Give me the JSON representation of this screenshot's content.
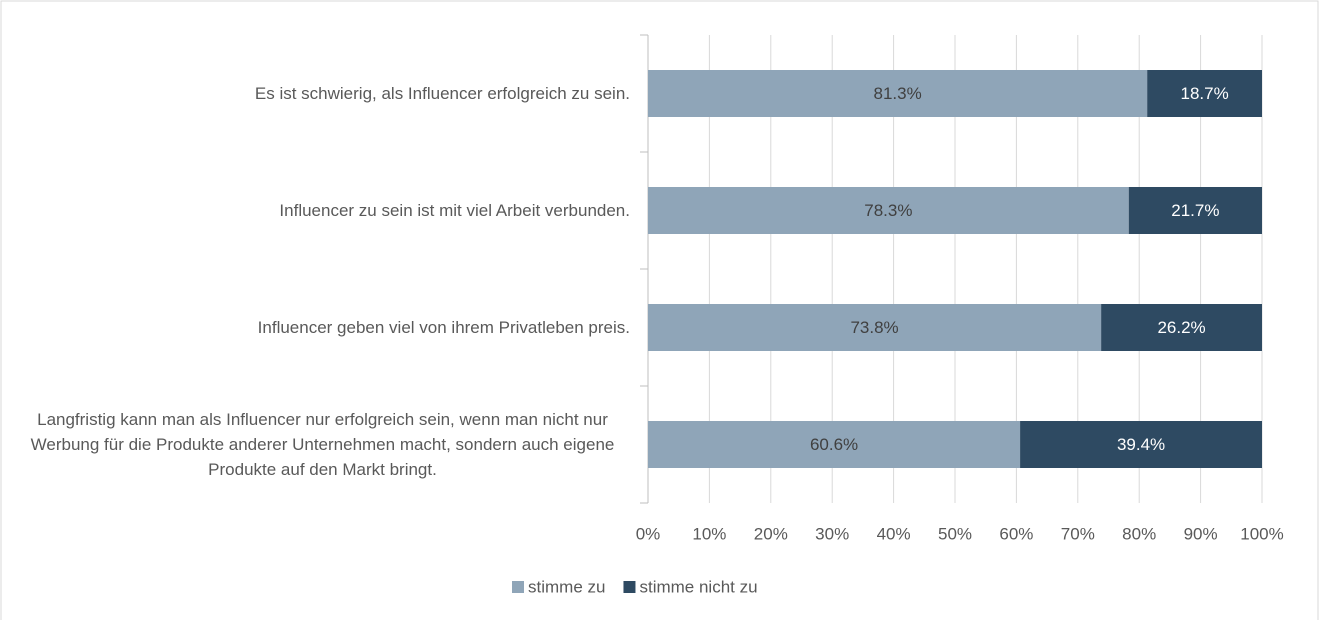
{
  "chart_data": {
    "type": "bar",
    "orientation": "horizontal",
    "stacked": true,
    "categories": [
      "Es ist schwierig, als Influencer erfolgreich zu sein.",
      "Influencer zu sein ist mit viel Arbeit verbunden.",
      "Influencer geben viel von ihrem Privatleben preis.",
      "Langfristig kann man als Influencer nur erfolgreich sein, wenn man nicht nur Werbung für die Produkte anderer Unternehmen macht, sondern auch eigene Produkte auf den Markt bringt."
    ],
    "series": [
      {
        "name": "stimme zu",
        "color": "#8fa5b8",
        "values": [
          81.3,
          78.3,
          73.8,
          60.6
        ],
        "value_labels": [
          "81.3%",
          "78.3%",
          "73.8%",
          "60.6%"
        ]
      },
      {
        "name": "stimme nicht zu",
        "color": "#2e4a62",
        "values": [
          18.7,
          21.7,
          26.2,
          39.4
        ],
        "value_labels": [
          "18.7%",
          "21.7%",
          "26.2%",
          "39.4%"
        ]
      }
    ],
    "xlim": [
      0,
      100
    ],
    "xticks": [
      {
        "value": 0,
        "label": "0%"
      },
      {
        "value": 10,
        "label": "10%"
      },
      {
        "value": 20,
        "label": "20%"
      },
      {
        "value": 30,
        "label": "30%"
      },
      {
        "value": 40,
        "label": "40%"
      },
      {
        "value": 50,
        "label": "50%"
      },
      {
        "value": 60,
        "label": "60%"
      },
      {
        "value": 70,
        "label": "70%"
      },
      {
        "value": 80,
        "label": "80%"
      },
      {
        "value": 90,
        "label": "90%"
      },
      {
        "value": 100,
        "label": "100%"
      }
    ],
    "grid": true,
    "legend": "bottom"
  }
}
